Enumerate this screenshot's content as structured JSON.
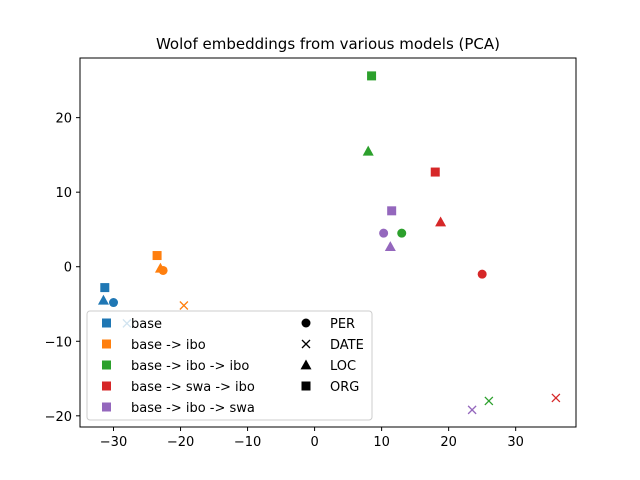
{
  "chart_data": {
    "type": "scatter",
    "title": "Wolof embeddings from various models (PCA)",
    "xlabel": "",
    "ylabel": "",
    "xlim": [
      -35,
      39
    ],
    "ylim": [
      -21.5,
      28
    ],
    "xticks": [
      -30,
      -20,
      -10,
      0,
      10,
      20,
      30
    ],
    "yticks": [
      -20,
      -10,
      0,
      10,
      20
    ],
    "tick_labels_x": [
      "−30",
      "−20",
      "−10",
      "0",
      "10",
      "20",
      "30"
    ],
    "tick_labels_y": [
      "−20",
      "−10",
      "0",
      "10",
      "20"
    ],
    "grid": false,
    "legend_placement": "lower-left",
    "series": [
      {
        "name": "base",
        "color": "#1f77b4",
        "points": {
          "PER": [
            -30.0,
            -4.8
          ],
          "DATE": [
            -28.0,
            -7.6
          ],
          "LOC": [
            -31.5,
            -4.5
          ],
          "ORG": [
            -31.3,
            -2.8
          ]
        }
      },
      {
        "name": "base -> ibo",
        "color": "#ff7f0e",
        "points": {
          "PER": [
            -22.6,
            -0.5
          ],
          "DATE": [
            -19.5,
            -5.2
          ],
          "LOC": [
            -23.0,
            -0.2
          ],
          "ORG": [
            -23.5,
            1.5
          ]
        }
      },
      {
        "name": "base -> ibo -> ibo",
        "color": "#2ca02c",
        "points": {
          "PER": [
            13.0,
            4.5
          ],
          "DATE": [
            26.0,
            -18.0
          ],
          "LOC": [
            8.0,
            15.5
          ],
          "ORG": [
            8.5,
            25.6
          ]
        }
      },
      {
        "name": "base -> swa -> ibo",
        "color": "#d62728",
        "points": {
          "PER": [
            25.0,
            -1.0
          ],
          "DATE": [
            36.0,
            -17.6
          ],
          "LOC": [
            18.8,
            6.0
          ],
          "ORG": [
            18.0,
            12.7
          ]
        }
      },
      {
        "name": "base -> ibo -> swa",
        "color": "#9467bd",
        "points": {
          "PER": [
            10.3,
            4.5
          ],
          "DATE": [
            23.5,
            -19.2
          ],
          "LOC": [
            11.3,
            2.7
          ],
          "ORG": [
            11.5,
            7.5
          ]
        }
      }
    ],
    "marker_legend": [
      {
        "name": "PER",
        "marker": "circle"
      },
      {
        "name": "DATE",
        "marker": "x"
      },
      {
        "name": "LOC",
        "marker": "triangle"
      },
      {
        "name": "ORG",
        "marker": "square"
      }
    ]
  }
}
